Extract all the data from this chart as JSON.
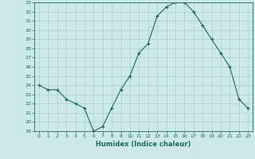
{
  "title": "",
  "xlabel": "Humidex (Indice chaleur)",
  "ylabel": "",
  "x": [
    0,
    1,
    2,
    3,
    4,
    5,
    6,
    7,
    8,
    9,
    10,
    11,
    12,
    13,
    14,
    15,
    16,
    17,
    18,
    19,
    20,
    21,
    22,
    23
  ],
  "y": [
    24.0,
    23.5,
    23.5,
    22.5,
    22.0,
    21.5,
    19.0,
    19.5,
    21.5,
    23.5,
    25.0,
    27.5,
    28.5,
    31.5,
    32.5,
    33.0,
    33.0,
    32.0,
    30.5,
    29.0,
    27.5,
    26.0,
    22.5,
    21.5
  ],
  "ylim": [
    19,
    33
  ],
  "yticks": [
    19,
    20,
    21,
    22,
    23,
    24,
    25,
    26,
    27,
    28,
    29,
    30,
    31,
    32,
    33
  ],
  "xticks": [
    0,
    1,
    2,
    3,
    4,
    5,
    6,
    7,
    8,
    9,
    10,
    11,
    12,
    13,
    14,
    15,
    16,
    17,
    18,
    19,
    20,
    21,
    22,
    23
  ],
  "line_color": "#1a6b5a",
  "marker_color": "#1a6b5a",
  "bg_color": "#cce8e8",
  "grid_color": "#aacece",
  "label_color": "#1a6b5a",
  "tick_color": "#1a6b5a",
  "spine_color": "#1a6b5a"
}
